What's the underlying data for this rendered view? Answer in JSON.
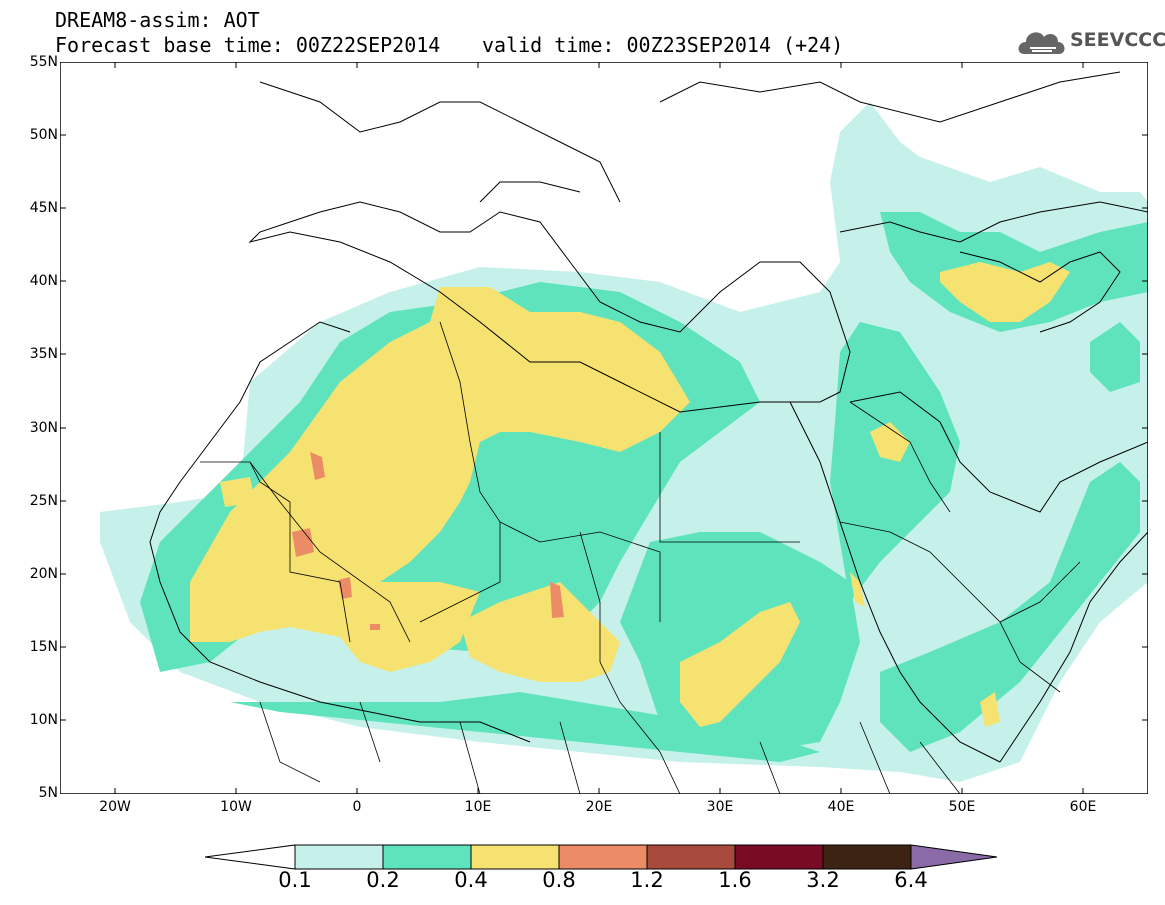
{
  "header": {
    "line1": "DREAM8-assim: AOT",
    "line2a": "Forecast base time: 00Z22SEP2014",
    "line2b": "valid time: 00Z23SEP2014 (+24)"
  },
  "logo": {
    "text": "SEEVCCC",
    "icon": "cloud-icon"
  },
  "map": {
    "lat_labels": [
      "55N",
      "50N",
      "45N",
      "40N",
      "35N",
      "30N",
      "25N",
      "20N",
      "15N",
      "10N",
      "5N"
    ],
    "lon_labels": [
      "20W",
      "10W",
      "0",
      "10E",
      "20E",
      "30E",
      "40E",
      "50E",
      "60E"
    ]
  },
  "colorbar": {
    "labels": [
      "0.1",
      "0.2",
      "0.4",
      "0.8",
      "1.2",
      "1.6",
      "3.2",
      "6.4"
    ],
    "colors": [
      "#ffffff",
      "#c6f1ea",
      "#5ee3bd",
      "#f6e271",
      "#ec8c67",
      "#a84b3c",
      "#7a0b25",
      "#3c2313",
      "#8b6aa8"
    ]
  }
}
